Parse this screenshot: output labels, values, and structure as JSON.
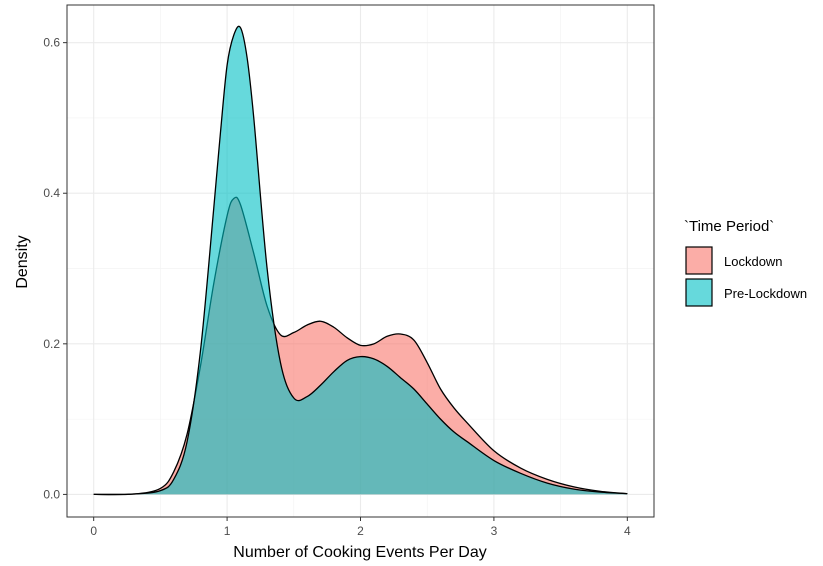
{
  "chart_data": {
    "type": "area",
    "subtype": "density",
    "title": "",
    "xlabel": "Number of Cooking Events Per Day",
    "ylabel": "Density",
    "xlim": [
      -0.2,
      4.2
    ],
    "ylim": [
      -0.03,
      0.65
    ],
    "x_ticks": [
      0,
      1,
      2,
      3,
      4
    ],
    "x_tick_labels": [
      "0",
      "1",
      "2",
      "3",
      "4"
    ],
    "y_ticks": [
      0.0,
      0.2,
      0.4,
      0.6
    ],
    "y_tick_labels": [
      "0.0",
      "0.2",
      "0.4",
      "0.6"
    ],
    "grid": true,
    "legend": {
      "title": "`Time Period`",
      "placement": "right",
      "entries": [
        "Lockdown",
        "Pre-Lockdown"
      ]
    },
    "series": [
      {
        "name": "Lockdown",
        "color": "#F8766D",
        "x": [
          0,
          0.3,
          0.5,
          0.6,
          0.7,
          0.8,
          0.9,
          1.0,
          1.05,
          1.1,
          1.2,
          1.3,
          1.4,
          1.5,
          1.6,
          1.7,
          1.8,
          1.9,
          2.0,
          2.1,
          2.2,
          2.3,
          2.4,
          2.5,
          2.6,
          2.7,
          2.8,
          3.0,
          3.2,
          3.4,
          3.6,
          3.8,
          4.0
        ],
        "y": [
          0,
          0.0005,
          0.008,
          0.03,
          0.08,
          0.17,
          0.28,
          0.37,
          0.393,
          0.385,
          0.32,
          0.25,
          0.212,
          0.215,
          0.225,
          0.23,
          0.222,
          0.208,
          0.198,
          0.2,
          0.21,
          0.213,
          0.205,
          0.175,
          0.14,
          0.115,
          0.095,
          0.058,
          0.035,
          0.02,
          0.01,
          0.004,
          0.001
        ]
      },
      {
        "name": "Pre-Lockdown",
        "color": "#00BFC4",
        "x": [
          0,
          0.3,
          0.5,
          0.6,
          0.7,
          0.8,
          0.9,
          0.95,
          1.0,
          1.05,
          1.1,
          1.15,
          1.2,
          1.3,
          1.4,
          1.5,
          1.6,
          1.7,
          1.8,
          1.9,
          2.0,
          2.1,
          2.2,
          2.3,
          2.4,
          2.5,
          2.6,
          2.7,
          2.8,
          3.0,
          3.2,
          3.4,
          3.6,
          3.8,
          4.0
        ],
        "y": [
          0,
          0.0005,
          0.005,
          0.02,
          0.07,
          0.19,
          0.38,
          0.48,
          0.57,
          0.61,
          0.62,
          0.58,
          0.5,
          0.3,
          0.175,
          0.128,
          0.13,
          0.145,
          0.163,
          0.178,
          0.183,
          0.18,
          0.17,
          0.155,
          0.14,
          0.12,
          0.1,
          0.083,
          0.07,
          0.045,
          0.028,
          0.015,
          0.007,
          0.003,
          0.001
        ]
      }
    ]
  }
}
